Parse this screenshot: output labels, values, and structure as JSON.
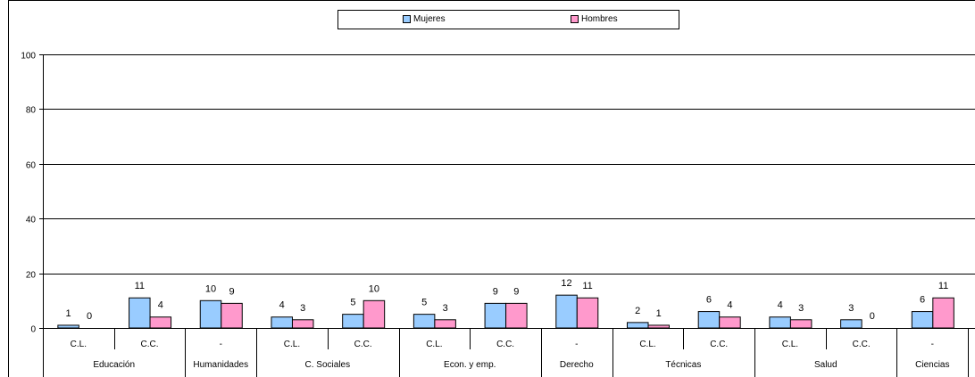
{
  "chart_data": {
    "type": "bar",
    "ylim": [
      0,
      100
    ],
    "yticks": [
      0,
      20,
      40,
      60,
      80,
      100
    ],
    "grid": true,
    "legend_placement": "top-center",
    "series": [
      {
        "name": "Mujeres",
        "color": "#99ccff",
        "values": [
          1,
          11,
          10,
          4,
          5,
          5,
          9,
          12,
          2,
          6,
          4,
          3,
          6
        ]
      },
      {
        "name": "Hombres",
        "color": "#ff99cc",
        "values": [
          0,
          4,
          9,
          3,
          10,
          3,
          9,
          11,
          1,
          4,
          3,
          0,
          11
        ]
      }
    ],
    "categories": [
      "C.L.",
      "C.C.",
      "-",
      "C.L.",
      "C.C.",
      "C.L.",
      "C.C.",
      "-",
      "C.L.",
      "C.C.",
      "C.L.",
      "C.C.",
      "-"
    ],
    "groups": [
      {
        "label": "Educación",
        "span": 2
      },
      {
        "label": "Humanidades",
        "span": 1
      },
      {
        "label": "C. Sociales",
        "span": 2
      },
      {
        "label": "Econ. y emp.",
        "span": 2
      },
      {
        "label": "Derecho",
        "span": 1
      },
      {
        "label": "Técnicas",
        "span": 2
      },
      {
        "label": "Salud",
        "span": 2
      },
      {
        "label": "Ciencias",
        "span": 1
      }
    ]
  },
  "legend": {
    "items": [
      {
        "label": "Mujeres",
        "color": "#99ccff"
      },
      {
        "label": "Hombres",
        "color": "#ff99cc"
      }
    ]
  }
}
